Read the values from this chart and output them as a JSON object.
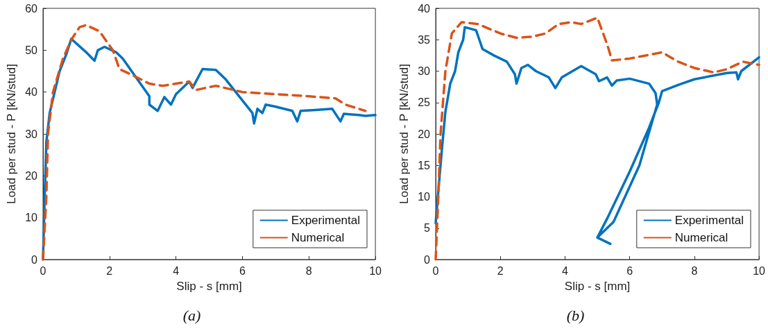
{
  "chart_data": [
    {
      "type": "line",
      "xlabel": "Slip - s [mm]",
      "ylabel": "Load per stud - P [kN/stud]",
      "xlim": [
        0,
        10
      ],
      "xticks": [
        0,
        2,
        4,
        6,
        8,
        10
      ],
      "ylim": [
        0,
        60
      ],
      "yticks": [
        0,
        10,
        20,
        30,
        40,
        50,
        60
      ],
      "grid": false,
      "legend": "bottom right",
      "marker": "none",
      "annotations": [
        "(a)"
      ],
      "series": [
        {
          "name": "Experimental",
          "color": "#0072bd",
          "line_style": "solid",
          "x": [
            0,
            0.05,
            0.1,
            0.2,
            0.35,
            0.5,
            0.7,
            0.85,
            1.3,
            1.55,
            1.65,
            1.85,
            2.2,
            2.4,
            3.2,
            3.2,
            3.45,
            3.65,
            3.85,
            4.0,
            4.4,
            4.5,
            4.8,
            5.2,
            5.5,
            6.3,
            6.35,
            6.45,
            6.6,
            6.7,
            7.0,
            7.5,
            7.65,
            7.75,
            8.2,
            8.7,
            8.95,
            9.05,
            9.5,
            9.7,
            10
          ],
          "values": [
            0,
            15,
            28,
            35,
            40,
            45,
            49,
            52.7,
            49.5,
            47.5,
            50,
            50.8,
            49.5,
            48,
            39,
            37,
            35.5,
            38.8,
            37,
            39.5,
            42.5,
            41,
            45.5,
            45.3,
            43,
            35,
            32.5,
            36,
            35,
            37,
            36.5,
            35.5,
            33,
            35.5,
            35.7,
            36,
            33,
            34.8,
            34.5,
            34.3,
            34.5
          ]
        },
        {
          "name": "Numerical",
          "color": "#d95319",
          "line_style": "dashed",
          "x": [
            0,
            0.1,
            0.15,
            0.3,
            0.6,
            0.85,
            1.1,
            1.3,
            1.7,
            2.1,
            2.3,
            2.7,
            3.2,
            3.6,
            4.0,
            4.4,
            4.6,
            5.2,
            6,
            7,
            8,
            8.8,
            9.1,
            9.5,
            9.7
          ],
          "values": [
            0,
            15,
            30,
            40,
            48,
            52.5,
            55.5,
            56,
            54.5,
            50,
            45.5,
            44,
            42,
            41.5,
            42,
            42.5,
            40.5,
            41.5,
            40,
            39.5,
            39,
            38.5,
            37,
            36,
            35.5
          ]
        }
      ]
    },
    {
      "type": "line",
      "xlabel": "Slip - s [mm]",
      "ylabel": "Load per stud - P [kN/stud]",
      "xlim": [
        0,
        10
      ],
      "xticks": [
        0,
        2,
        4,
        6,
        8,
        10
      ],
      "ylim": [
        0,
        40
      ],
      "yticks": [
        0,
        5,
        10,
        15,
        20,
        25,
        30,
        35,
        40
      ],
      "grid": false,
      "legend": "bottom right",
      "marker": "none",
      "annotations": [
        "(b)"
      ],
      "series": [
        {
          "name": "Experimental",
          "color": "#0072bd",
          "line_style": "solid",
          "x": [
            0,
            0.1,
            0.2,
            0.3,
            0.45,
            0.6,
            0.7,
            0.85,
            0.9,
            1.25,
            1.35,
            1.45,
            1.8,
            2.2,
            2.45,
            2.5,
            2.65,
            2.85,
            3.1,
            3.5,
            3.7,
            3.9,
            4.5,
            4.95,
            5.05,
            5.3,
            5.45,
            5.6,
            6.0,
            6.6,
            6.8,
            6.85,
            6.3,
            5.5,
            5.0,
            5.4,
            5.0,
            5.3,
            6.0,
            6.6,
            6.9,
            7.0,
            7.5,
            8,
            9,
            9.3,
            9.35,
            9.45,
            10
          ],
          "values": [
            5.8,
            12,
            18,
            23.5,
            28,
            30,
            33,
            35,
            37,
            36.5,
            35,
            33.5,
            32.5,
            31.5,
            29.5,
            28,
            30.5,
            31,
            30,
            29,
            27.3,
            29,
            30.8,
            29.5,
            28.4,
            29,
            27.7,
            28.5,
            28.8,
            28,
            26.5,
            24.7,
            15,
            6,
            3.5,
            2.5,
            3.5,
            6.5,
            14,
            21,
            25,
            26.8,
            27.8,
            28.7,
            29.7,
            29.8,
            28.7,
            30,
            32.2
          ]
        },
        {
          "name": "Numerical",
          "color": "#d95319",
          "line_style": "dashed",
          "x": [
            0,
            0.08,
            0.15,
            0.3,
            0.5,
            0.8,
            1.3,
            2,
            2.5,
            3,
            3.4,
            3.8,
            4.2,
            4.5,
            5.0,
            5.25,
            5.35,
            5.45,
            6,
            7,
            7.5,
            8,
            8.6,
            9,
            9.5,
            10
          ],
          "values": [
            0,
            10,
            20,
            30,
            36,
            37.8,
            37.5,
            36,
            35.3,
            35.5,
            36,
            37.5,
            37.8,
            37.5,
            38.5,
            35,
            33.5,
            31.7,
            32,
            33,
            31.5,
            30.5,
            29.8,
            30.3,
            31.5,
            31
          ]
        }
      ]
    }
  ]
}
